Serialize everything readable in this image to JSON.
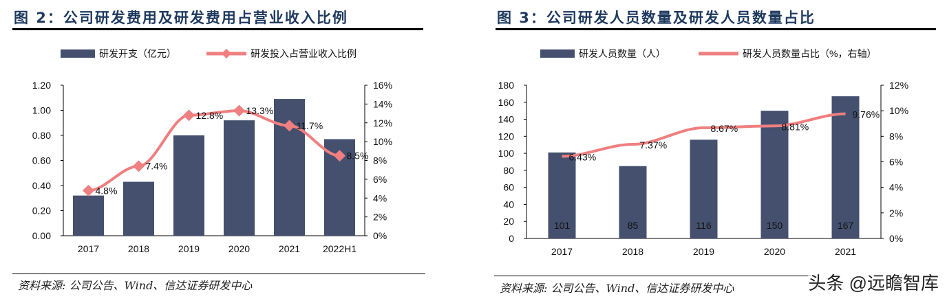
{
  "left": {
    "title": "图 2：公司研发费用及研发费用占营业收入比例",
    "source": "资料来源: 公司公告、Wind、信达证券研发中心"
  },
  "right": {
    "title": "图 3：公司研发人员数量及研发人员数量占比",
    "source": "资料来源: 公司公告、Wind、信达证券研发中心"
  },
  "watermark": "头条 @远瞻智库",
  "colors": {
    "bar": "#44506e",
    "line": "#f07f80",
    "title": "#1f3a5f"
  },
  "chart_data": [
    {
      "type": "bar+line",
      "categories": [
        "2017",
        "2018",
        "2019",
        "2020",
        "2021",
        "2022H1"
      ],
      "series": [
        {
          "name": "研发开支（亿元）",
          "type": "bar",
          "values": [
            0.32,
            0.43,
            0.8,
            0.92,
            1.09,
            0.77
          ]
        },
        {
          "name": "研发投入占营业收入比例",
          "type": "line",
          "marker": "diamond",
          "values": [
            4.8,
            7.4,
            12.8,
            13.3,
            11.7,
            8.5
          ],
          "labels": [
            "4.8%",
            "7.4%",
            "12.8%",
            "13.3%",
            "11.7%",
            "8.5%"
          ]
        }
      ],
      "ylim": [
        0,
        1.2
      ],
      "yticks": [
        "0.00",
        "0.20",
        "0.40",
        "0.60",
        "0.80",
        "1.00",
        "1.20"
      ],
      "y2lim": [
        0,
        16
      ],
      "y2ticks": [
        "0%",
        "2%",
        "4%",
        "6%",
        "8%",
        "10%",
        "12%",
        "14%",
        "16%"
      ],
      "legend": "top"
    },
    {
      "type": "bar+line",
      "categories": [
        "2017",
        "2018",
        "2019",
        "2020",
        "2021"
      ],
      "series": [
        {
          "name": "研发人员数量（人）",
          "type": "bar",
          "values": [
            101,
            85,
            116,
            150,
            167
          ],
          "labels": [
            "101",
            "85",
            "116",
            "150",
            "167"
          ]
        },
        {
          "name": "研发人员数量占比（%，右轴）",
          "type": "line",
          "values": [
            6.43,
            7.37,
            8.67,
            8.81,
            9.76
          ],
          "labels": [
            "6.43%",
            "7.37%",
            "8.67%",
            "8.81%",
            "9.76%"
          ]
        }
      ],
      "ylim": [
        0,
        180
      ],
      "yticks": [
        "0",
        "20",
        "40",
        "60",
        "80",
        "100",
        "120",
        "140",
        "160",
        "180"
      ],
      "y2lim": [
        0,
        12
      ],
      "y2ticks": [
        "0%",
        "2%",
        "4%",
        "6%",
        "8%",
        "10%",
        "12%"
      ],
      "legend": "top"
    }
  ]
}
